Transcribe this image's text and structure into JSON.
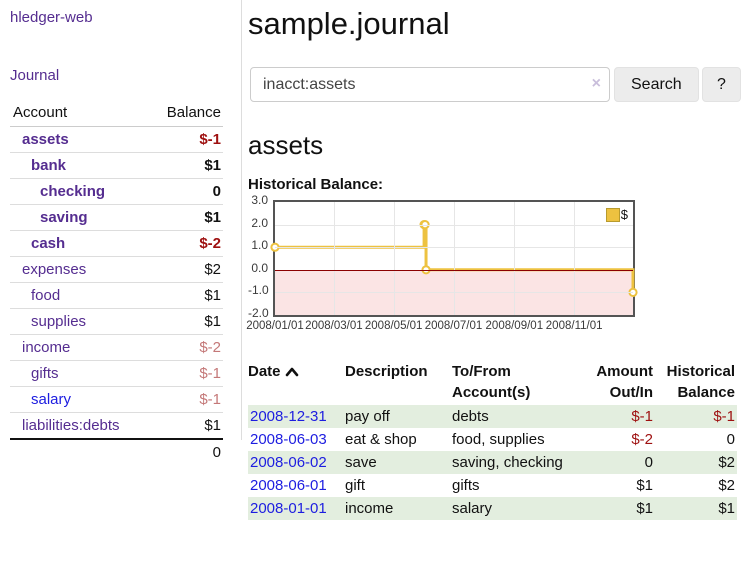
{
  "colors": {
    "purple_link": "#552d90",
    "blue_link": "#1d1de0",
    "negative_red": "#9e1010",
    "soft_rose": "#c47878",
    "row_green": "#e3eedf",
    "series_gold": "#edc240",
    "chart_border": "#545454",
    "grid_gray": "#e6e6e6",
    "zero_line_red": "#8b0000",
    "negative_area_pink": "#fbe4e4"
  },
  "sidebar": {
    "app_title": "hledger-web",
    "journal_link": "Journal",
    "accounts": {
      "headers": {
        "account": "Account",
        "balance": "Balance"
      },
      "rows": [
        {
          "name": "assets",
          "depth": 0,
          "bold": true,
          "link_style": "purple",
          "balance": "$-1",
          "balance_style": "neg"
        },
        {
          "name": "bank",
          "depth": 1,
          "bold": true,
          "link_style": "purple",
          "balance": "$1",
          "balance_style": "plain"
        },
        {
          "name": "checking",
          "depth": 2,
          "bold": true,
          "link_style": "purple",
          "balance": "0",
          "balance_style": "plain"
        },
        {
          "name": "saving",
          "depth": 2,
          "bold": true,
          "link_style": "purple",
          "balance": "$1",
          "balance_style": "plain"
        },
        {
          "name": "cash",
          "depth": 1,
          "bold": true,
          "link_style": "purple",
          "balance": "$-2",
          "balance_style": "neg"
        },
        {
          "name": "expenses",
          "depth": 0,
          "bold": false,
          "link_style": "purple",
          "balance": "$2",
          "balance_style": "plain"
        },
        {
          "name": "food",
          "depth": 1,
          "bold": false,
          "link_style": "purple",
          "balance": "$1",
          "balance_style": "plain"
        },
        {
          "name": "supplies",
          "depth": 1,
          "bold": false,
          "link_style": "purple",
          "balance": "$1",
          "balance_style": "plain"
        },
        {
          "name": "income",
          "depth": 0,
          "bold": false,
          "link_style": "purple",
          "balance": "$-2",
          "balance_style": "rose"
        },
        {
          "name": "gifts",
          "depth": 1,
          "bold": false,
          "link_style": "purple",
          "balance": "$-1",
          "balance_style": "rose"
        },
        {
          "name": "salary",
          "depth": 1,
          "bold": false,
          "link_style": "blue",
          "balance": "$-1",
          "balance_style": "rose"
        },
        {
          "name": "liabilities:debts",
          "depth": 0,
          "bold": false,
          "link_style": "purple",
          "balance": "$1",
          "balance_style": "plain"
        }
      ],
      "total": "0"
    }
  },
  "main": {
    "title": "sample.journal",
    "search": {
      "value": "inacct:assets",
      "clear_icon": "×",
      "search_button": "Search",
      "help_button": "?"
    },
    "account_heading": "assets",
    "chart_title": "Historical Balance:"
  },
  "chart_data": {
    "type": "line",
    "steps": true,
    "x_range": [
      "2008-01-01",
      "2008-12-31"
    ],
    "ylim": [
      -2,
      3
    ],
    "y_ticks": [
      "3.0",
      "2.0",
      "1.0",
      "0.0",
      "-1.0",
      "-2.0"
    ],
    "x_ticks": [
      {
        "date": "2008-01-01",
        "label": "2008/01/01"
      },
      {
        "date": "2008-03-01",
        "label": "2008/03/01"
      },
      {
        "date": "2008-05-01",
        "label": "2008/05/01"
      },
      {
        "date": "2008-07-01",
        "label": "2008/07/01"
      },
      {
        "date": "2008-09-01",
        "label": "2008/09/01"
      },
      {
        "date": "2008-11-01",
        "label": "2008/11/01"
      }
    ],
    "series": [
      {
        "name": "$",
        "color": "#edc240",
        "points": [
          {
            "x": "2008-01-01",
            "y": 1
          },
          {
            "x": "2008-06-01",
            "y": 2
          },
          {
            "x": "2008-06-02",
            "y": 2
          },
          {
            "x": "2008-06-03",
            "y": 0
          },
          {
            "x": "2008-12-31",
            "y": -1
          }
        ]
      }
    ],
    "legend": {
      "label": "$",
      "position": "top-right"
    },
    "grid": true,
    "negative_region_shaded": true,
    "zero_line": true
  },
  "register": {
    "headers": {
      "date": "Date",
      "description": "Description",
      "tofrom": "To/From Account(s)",
      "amount": "Amount Out/In",
      "balance": "Historical Balance"
    },
    "rows": [
      {
        "date": "2008-12-31",
        "description": "pay off",
        "tofrom": "debts",
        "amount": "$-1",
        "balance": "$-1"
      },
      {
        "date": "2008-06-03",
        "description": "eat & shop",
        "tofrom": "food, supplies",
        "amount": "$-2",
        "balance": "0"
      },
      {
        "date": "2008-06-02",
        "description": "save",
        "tofrom": "saving, checking",
        "amount": "0",
        "balance": "$2"
      },
      {
        "date": "2008-06-01",
        "description": "gift",
        "tofrom": "gifts",
        "amount": "$1",
        "balance": "$2"
      },
      {
        "date": "2008-01-01",
        "description": "income",
        "tofrom": "salary",
        "amount": "$1",
        "balance": "$1"
      }
    ]
  }
}
